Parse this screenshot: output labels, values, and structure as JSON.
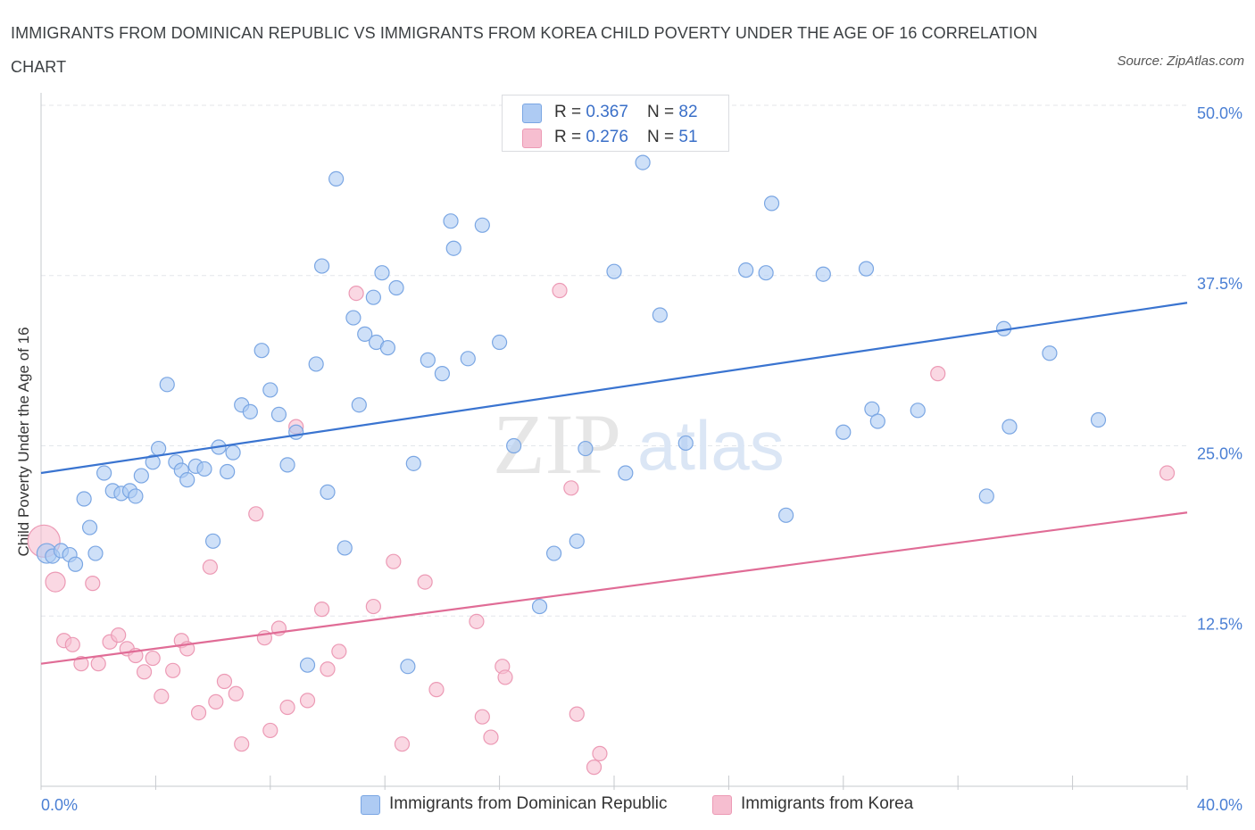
{
  "title": "IMMIGRANTS FROM DOMINICAN REPUBLIC VS IMMIGRANTS FROM KOREA CHILD POVERTY UNDER THE AGE OF 16 CORRELATION CHART",
  "source": "Source: ZipAtlas.com",
  "watermark": {
    "zip": "ZIP",
    "atlas": "atlas"
  },
  "colors": {
    "blue_fill": "#aecbf3",
    "blue_stroke": "#7aa6e3",
    "blue_line": "#3a74d0",
    "pink_fill": "#f6bed0",
    "pink_stroke": "#ec9ab5",
    "pink_line": "#e06c96",
    "tick_text": "#4a7fd4",
    "grid": "#e3e6ea"
  },
  "legend": {
    "rows": [
      {
        "r_label": "R = ",
        "r_value": "0.367",
        "n_label": "N = ",
        "n_value": "82"
      },
      {
        "r_label": "R = ",
        "r_value": "0.276",
        "n_label": "N = ",
        "n_value": "51"
      }
    ]
  },
  "chart_data": {
    "type": "scatter",
    "title": "IMMIGRANTS FROM DOMINICAN REPUBLIC VS IMMIGRANTS FROM KOREA CHILD POVERTY UNDER THE AGE OF 16 CORRELATION CHART",
    "xlabel": "",
    "ylabel": "Child Poverty Under the Age of 16",
    "xlim": [
      0,
      40
    ],
    "ylim": [
      0,
      50
    ],
    "x_tick_labels": [
      "0.0%",
      "40.0%"
    ],
    "y_ticks": [
      12.5,
      25.0,
      37.5,
      50.0
    ],
    "y_tick_labels": [
      "12.5%",
      "25.0%",
      "37.5%",
      "50.0%"
    ],
    "grid": true,
    "legend_position": "bottom",
    "series": [
      {
        "name": "Immigrants from Dominican Republic",
        "color": "#aecbf3",
        "trend": [
          [
            0,
            23.0
          ],
          [
            40,
            35.5
          ]
        ],
        "points": [
          [
            0.2,
            17.1
          ],
          [
            0.4,
            16.9
          ],
          [
            0.7,
            17.3
          ],
          [
            1.0,
            17.0
          ],
          [
            1.2,
            16.3
          ],
          [
            1.5,
            21.1
          ],
          [
            1.7,
            19.0
          ],
          [
            1.9,
            17.1
          ],
          [
            2.2,
            23.0
          ],
          [
            2.5,
            21.7
          ],
          [
            2.8,
            21.5
          ],
          [
            3.1,
            21.7
          ],
          [
            3.3,
            21.3
          ],
          [
            3.5,
            22.8
          ],
          [
            3.9,
            23.8
          ],
          [
            4.1,
            24.8
          ],
          [
            4.4,
            29.5
          ],
          [
            4.7,
            23.8
          ],
          [
            4.9,
            23.2
          ],
          [
            5.1,
            22.5
          ],
          [
            5.4,
            23.5
          ],
          [
            5.7,
            23.3
          ],
          [
            6.0,
            18.0
          ],
          [
            6.2,
            24.9
          ],
          [
            6.5,
            23.1
          ],
          [
            6.7,
            24.5
          ],
          [
            7.0,
            28.0
          ],
          [
            7.3,
            27.5
          ],
          [
            7.7,
            32.0
          ],
          [
            8.0,
            29.1
          ],
          [
            8.3,
            27.3
          ],
          [
            8.6,
            23.6
          ],
          [
            8.9,
            26.0
          ],
          [
            9.3,
            8.9
          ],
          [
            9.6,
            31.0
          ],
          [
            9.8,
            38.2
          ],
          [
            10.0,
            21.6
          ],
          [
            10.3,
            44.6
          ],
          [
            10.6,
            17.5
          ],
          [
            10.9,
            34.4
          ],
          [
            11.1,
            28.0
          ],
          [
            11.3,
            33.2
          ],
          [
            11.6,
            35.9
          ],
          [
            11.7,
            32.6
          ],
          [
            11.9,
            37.7
          ],
          [
            12.1,
            32.2
          ],
          [
            12.4,
            36.6
          ],
          [
            12.8,
            8.8
          ],
          [
            13.0,
            23.7
          ],
          [
            13.5,
            31.3
          ],
          [
            14.0,
            30.3
          ],
          [
            14.3,
            41.5
          ],
          [
            14.4,
            39.5
          ],
          [
            14.9,
            31.4
          ],
          [
            15.4,
            41.2
          ],
          [
            16.0,
            32.6
          ],
          [
            16.5,
            25.0
          ],
          [
            16.8,
            48.5
          ],
          [
            17.4,
            13.2
          ],
          [
            17.9,
            17.1
          ],
          [
            18.7,
            18.0
          ],
          [
            19.0,
            24.8
          ],
          [
            20.0,
            37.8
          ],
          [
            20.4,
            23.0
          ],
          [
            21.0,
            45.8
          ],
          [
            21.6,
            34.6
          ],
          [
            22.5,
            25.2
          ],
          [
            24.6,
            37.9
          ],
          [
            25.3,
            37.7
          ],
          [
            25.5,
            42.8
          ],
          [
            26.0,
            19.9
          ],
          [
            27.3,
            37.6
          ],
          [
            28.0,
            26.0
          ],
          [
            28.8,
            38.0
          ],
          [
            29.0,
            27.7
          ],
          [
            29.2,
            26.8
          ],
          [
            30.6,
            27.6
          ],
          [
            33.0,
            21.3
          ],
          [
            33.6,
            33.6
          ],
          [
            33.8,
            26.4
          ],
          [
            35.2,
            31.8
          ],
          [
            36.9,
            26.9
          ]
        ]
      },
      {
        "name": "Immigrants from Korea",
        "color": "#f6bed0",
        "trend": [
          [
            0,
            9.0
          ],
          [
            40,
            20.1
          ]
        ],
        "points": [
          [
            0.1,
            18.0
          ],
          [
            0.5,
            15.0
          ],
          [
            0.8,
            10.7
          ],
          [
            1.1,
            10.4
          ],
          [
            1.4,
            9.0
          ],
          [
            1.8,
            14.9
          ],
          [
            2.0,
            9.0
          ],
          [
            2.4,
            10.6
          ],
          [
            2.7,
            11.1
          ],
          [
            3.0,
            10.1
          ],
          [
            3.3,
            9.6
          ],
          [
            3.6,
            8.4
          ],
          [
            3.9,
            9.4
          ],
          [
            4.2,
            6.6
          ],
          [
            4.6,
            8.5
          ],
          [
            4.9,
            10.7
          ],
          [
            5.1,
            10.1
          ],
          [
            5.5,
            5.4
          ],
          [
            5.9,
            16.1
          ],
          [
            6.1,
            6.2
          ],
          [
            6.4,
            7.7
          ],
          [
            6.8,
            6.8
          ],
          [
            7.0,
            3.1
          ],
          [
            7.5,
            20.0
          ],
          [
            7.8,
            10.9
          ],
          [
            8.0,
            4.1
          ],
          [
            8.3,
            11.6
          ],
          [
            8.6,
            5.8
          ],
          [
            8.9,
            26.4
          ],
          [
            9.3,
            6.3
          ],
          [
            9.8,
            13.0
          ],
          [
            10.0,
            8.6
          ],
          [
            10.4,
            9.9
          ],
          [
            11.0,
            36.2
          ],
          [
            11.6,
            13.2
          ],
          [
            12.3,
            16.5
          ],
          [
            12.6,
            3.1
          ],
          [
            13.4,
            15.0
          ],
          [
            13.8,
            7.1
          ],
          [
            15.2,
            12.1
          ],
          [
            15.4,
            5.1
          ],
          [
            15.7,
            3.6
          ],
          [
            16.1,
            8.8
          ],
          [
            16.2,
            8.0
          ],
          [
            18.1,
            36.4
          ],
          [
            18.5,
            21.9
          ],
          [
            18.7,
            5.3
          ],
          [
            19.3,
            1.4
          ],
          [
            19.5,
            2.4
          ],
          [
            31.3,
            30.3
          ],
          [
            39.3,
            23.0
          ]
        ]
      }
    ]
  },
  "bottom_legend": [
    {
      "label": "Immigrants from Dominican Republic"
    },
    {
      "label": "Immigrants from Korea"
    }
  ]
}
